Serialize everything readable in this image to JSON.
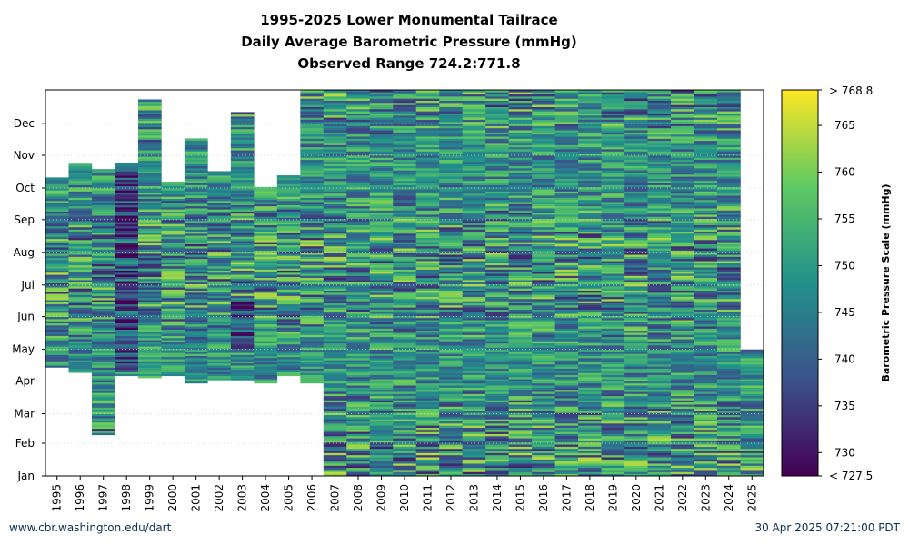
{
  "title_lines": [
    "1995-2025 Lower Monumental Tailrace",
    "Daily Average Barometric Pressure (mmHg)",
    "Observed Range 724.2:771.8"
  ],
  "footer": {
    "left": "www.cbr.washington.edu/dart",
    "right": "30 Apr 2025 07:21:00 PDT"
  },
  "colors": {
    "low": "#440154",
    "mid": "#21918c",
    "high": "#fde725",
    "gridline": "#cccccc"
  },
  "chart_data": {
    "type": "heatmap",
    "x_categories": [
      "1995",
      "1996",
      "1997",
      "1998",
      "1999",
      "2000",
      "2001",
      "2002",
      "2003",
      "2004",
      "2005",
      "2006",
      "2007",
      "2008",
      "2009",
      "2010",
      "2011",
      "2012",
      "2013",
      "2014",
      "2015",
      "2016",
      "2017",
      "2018",
      "2019",
      "2020",
      "2021",
      "2022",
      "2023",
      "2024",
      "2025"
    ],
    "y_tick_labels": [
      "Jan",
      "Feb",
      "Mar",
      "Apr",
      "May",
      "Jun",
      "Jul",
      "Aug",
      "Sep",
      "Oct",
      "Nov",
      "Dec"
    ],
    "y_tick_days": [
      1,
      32,
      60,
      91,
      121,
      152,
      182,
      213,
      244,
      274,
      305,
      335
    ],
    "coverage": [
      {
        "year": "1995",
        "start_day": 104,
        "end_day": 283
      },
      {
        "year": "1996",
        "start_day": 99,
        "end_day": 296
      },
      {
        "year": "1997",
        "start_day": 40,
        "end_day": 290
      },
      {
        "year": "1998",
        "start_day": 96,
        "end_day": 296
      },
      {
        "year": "1999",
        "start_day": 94,
        "end_day": 356
      },
      {
        "year": "2000",
        "start_day": 96,
        "end_day": 279
      },
      {
        "year": "2001",
        "start_day": 89,
        "end_day": 320
      },
      {
        "year": "2002",
        "start_day": 92,
        "end_day": 288
      },
      {
        "year": "2003",
        "start_day": 92,
        "end_day": 345
      },
      {
        "year": "2004",
        "start_day": 89,
        "end_day": 274
      },
      {
        "year": "2005",
        "start_day": 96,
        "end_day": 285
      },
      {
        "year": "2006",
        "start_day": 89,
        "end_day": 366
      },
      {
        "year": "2007",
        "start_day": 1,
        "end_day": 366
      },
      {
        "year": "2008",
        "start_day": 1,
        "end_day": 366
      },
      {
        "year": "2009",
        "start_day": 1,
        "end_day": 366
      },
      {
        "year": "2010",
        "start_day": 1,
        "end_day": 366
      },
      {
        "year": "2011",
        "start_day": 1,
        "end_day": 366
      },
      {
        "year": "2012",
        "start_day": 1,
        "end_day": 366
      },
      {
        "year": "2013",
        "start_day": 1,
        "end_day": 366
      },
      {
        "year": "2014",
        "start_day": 1,
        "end_day": 366
      },
      {
        "year": "2015",
        "start_day": 1,
        "end_day": 366
      },
      {
        "year": "2016",
        "start_day": 1,
        "end_day": 366
      },
      {
        "year": "2017",
        "start_day": 1,
        "end_day": 366
      },
      {
        "year": "2018",
        "start_day": 1,
        "end_day": 366
      },
      {
        "year": "2019",
        "start_day": 1,
        "end_day": 366
      },
      {
        "year": "2020",
        "start_day": 1,
        "end_day": 366
      },
      {
        "year": "2021",
        "start_day": 1,
        "end_day": 366
      },
      {
        "year": "2022",
        "start_day": 1,
        "end_day": 366
      },
      {
        "year": "2023",
        "start_day": 1,
        "end_day": 366
      },
      {
        "year": "2024",
        "start_day": 1,
        "end_day": 366
      },
      {
        "year": "2025",
        "start_day": 1,
        "end_day": 120
      }
    ],
    "value_range": [
      727.5,
      768.8
    ],
    "observed_range": [
      724.2,
      771.8
    ],
    "colorbar": {
      "label": "Barometric Pressure Scale (mmHg)",
      "ticks": [
        730,
        735,
        740,
        745,
        750,
        755,
        760,
        765
      ],
      "top_label": "> 768.8",
      "bottom_label": "< 727.5"
    },
    "grid": true
  }
}
